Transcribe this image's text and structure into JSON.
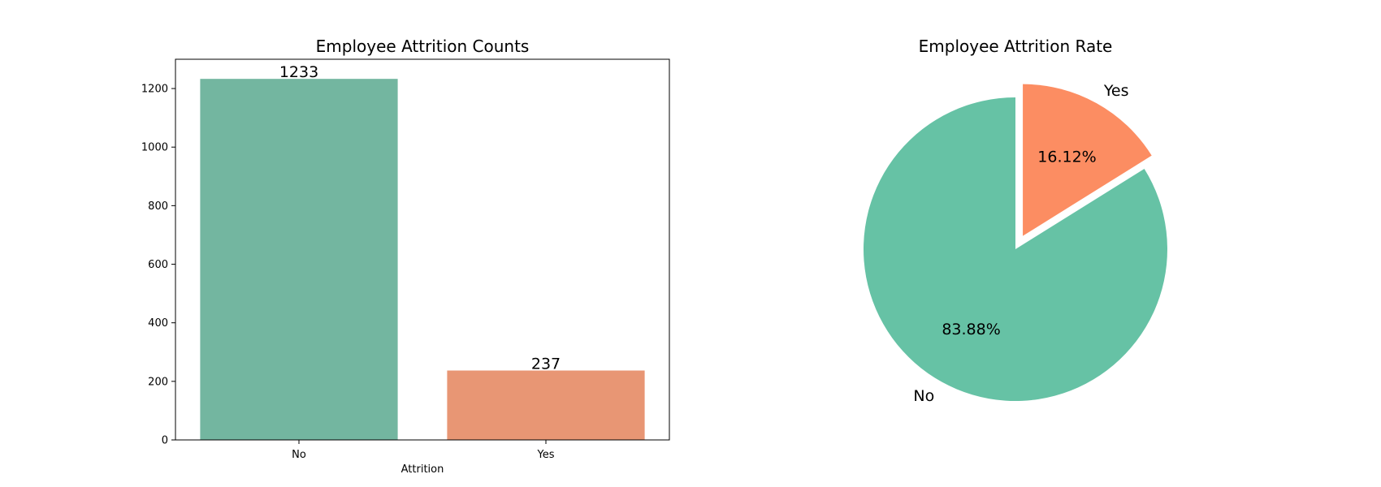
{
  "chart_data": [
    {
      "type": "bar",
      "title": "Employee Attrition Counts",
      "xlabel": "Attrition",
      "ylabel": "",
      "categories": [
        "No",
        "Yes"
      ],
      "values": [
        1233,
        237
      ],
      "data_labels": [
        "1233",
        "237"
      ],
      "ylim": [
        0,
        1300
      ],
      "yticks": [
        0,
        200,
        400,
        600,
        800,
        1000,
        1200
      ],
      "colors": [
        "#73b6a0",
        "#e89674"
      ],
      "grid": false
    },
    {
      "type": "pie",
      "title": "Employee Attrition Rate",
      "labels": [
        "No",
        "Yes"
      ],
      "values": [
        83.88,
        16.12
      ],
      "percent_labels": [
        "83.88%",
        "16.12%"
      ],
      "colors": [
        "#66c2a5",
        "#fc8d62"
      ],
      "exploded": "Yes"
    }
  ]
}
